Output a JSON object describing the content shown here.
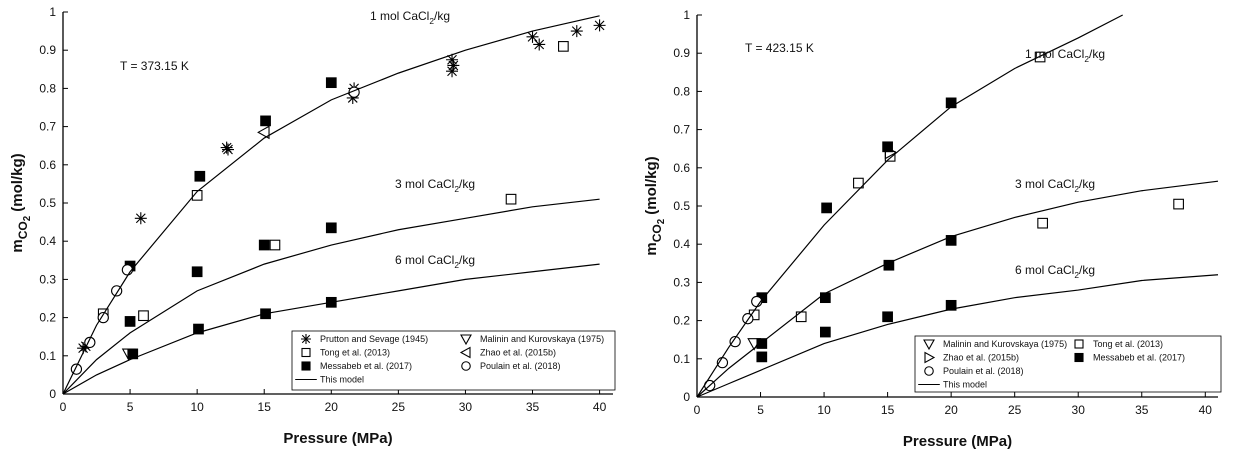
{
  "chart_data": [
    {
      "type": "scatter",
      "annotation": "T = 373.15 K",
      "xlabel": "Pressure (MPa)",
      "ylabel": [
        "m",
        "CO",
        "2",
        " (mol/kg)"
      ],
      "xlim": [
        0,
        41
      ],
      "ylim": [
        0,
        1
      ],
      "xticks": [
        0,
        5,
        10,
        15,
        20,
        25,
        30,
        35,
        40
      ],
      "yticks": [
        0,
        0.1,
        0.2,
        0.3,
        0.4,
        0.5,
        0.6,
        0.7,
        0.8,
        0.9,
        1
      ],
      "series": [
        {
          "name": "Prutton and Sevage (1945)",
          "marker": "asterisk",
          "color": "#000000",
          "x": [
            1.5,
            1.7,
            5.8,
            12.2,
            12.3,
            21.7,
            21.6,
            29,
            29,
            29.1,
            35,
            35.5,
            38.3,
            40
          ],
          "values": [
            0.12,
            0.125,
            0.46,
            0.645,
            0.64,
            0.8,
            0.775,
            0.875,
            0.845,
            0.86,
            0.935,
            0.915,
            0.95,
            0.965
          ]
        },
        {
          "name": "Malinin and Kurovskaya (1975)",
          "marker": "triangle-down",
          "color": "#000000",
          "x": [
            4.9
          ],
          "values": [
            0.105
          ]
        },
        {
          "name": "Tong et al. (2013)",
          "marker": "square-open",
          "color": "#000000",
          "x": [
            3,
            6,
            10,
            15.8,
            33.4,
            37.3
          ],
          "values": [
            0.21,
            0.205,
            0.52,
            0.39,
            0.51,
            0.91
          ]
        },
        {
          "name": "Zhao et al. (2015b)",
          "marker": "triangle-left",
          "color": "#000000",
          "x": [
            15
          ],
          "values": [
            0.685
          ]
        },
        {
          "name": "Messabeb et al. (2017)",
          "marker": "square-filled",
          "color": "#000000",
          "x": [
            5,
            5,
            5.2,
            10.2,
            10,
            10.1,
            15.1,
            15,
            15.1,
            20,
            20,
            20
          ],
          "values": [
            0.335,
            0.19,
            0.105,
            0.57,
            0.32,
            0.17,
            0.715,
            0.39,
            0.21,
            0.815,
            0.435,
            0.24
          ]
        },
        {
          "name": "Poulain et al. (2018)",
          "marker": "circle-open",
          "color": "#000000",
          "x": [
            1,
            2,
            3,
            4,
            4.8,
            21.7
          ],
          "values": [
            0.065,
            0.135,
            0.2,
            0.27,
            0.325,
            0.79
          ]
        },
        {
          "name": "This model",
          "marker": "line",
          "color": "#000000",
          "curves": [
            {
              "label": [
                "1 mol CaCl",
                "2",
                "/kg"
              ],
              "x": [
                0,
                2.5,
                5,
                10,
                15,
                20,
                25,
                30,
                35,
                40
              ],
              "values": [
                0,
                0.18,
                0.32,
                0.53,
                0.67,
                0.77,
                0.84,
                0.9,
                0.95,
                0.99
              ]
            },
            {
              "label": [
                "3 mol CaCl",
                "2",
                "/kg"
              ],
              "x": [
                0,
                2.5,
                5,
                10,
                15,
                20,
                25,
                30,
                35,
                40
              ],
              "values": [
                0,
                0.09,
                0.16,
                0.27,
                0.34,
                0.39,
                0.43,
                0.46,
                0.49,
                0.51
              ]
            },
            {
              "label": [
                "6 mol CaCl",
                "2",
                "/kg"
              ],
              "x": [
                0,
                2.5,
                5,
                10,
                15,
                20,
                25,
                30,
                35,
                40
              ],
              "values": [
                0,
                0.05,
                0.09,
                0.16,
                0.21,
                0.24,
                0.27,
                0.3,
                0.32,
                0.34
              ]
            }
          ]
        }
      ]
    },
    {
      "type": "scatter",
      "annotation": "T = 423.15 K",
      "xlabel": "Pressure (MPa)",
      "ylabel": [
        "m",
        "CO",
        "2",
        " (mol/kg)"
      ],
      "xlim": [
        0,
        41
      ],
      "ylim": [
        0,
        1
      ],
      "xticks": [
        0,
        5,
        10,
        15,
        20,
        25,
        30,
        35,
        40
      ],
      "yticks": [
        0,
        0.1,
        0.2,
        0.3,
        0.4,
        0.5,
        0.6,
        0.7,
        0.8,
        0.9,
        1
      ],
      "series": [
        {
          "name": "Malinin and Kurovskaya (1975)",
          "marker": "triangle-down",
          "color": "#000000",
          "x": [
            4.5
          ],
          "values": [
            0.14
          ]
        },
        {
          "name": "Tong et al. (2013)",
          "marker": "square-open",
          "color": "#000000",
          "x": [
            4.5,
            8.2,
            12.7,
            15.2,
            27,
            27.2,
            37.9
          ],
          "values": [
            0.215,
            0.21,
            0.56,
            0.63,
            0.89,
            0.455,
            0.505
          ]
        },
        {
          "name": "Zhao et al. (2015b)",
          "marker": "triangle-right",
          "color": "#000000",
          "x": [
            15.2
          ],
          "values": [
            0.64
          ]
        },
        {
          "name": "Messabeb et al. (2017)",
          "marker": "square-filled",
          "color": "#000000",
          "x": [
            5.1,
            5.1,
            5.1,
            10.2,
            10.1,
            10.1,
            15,
            15.1,
            15,
            20,
            20,
            20
          ],
          "values": [
            0.26,
            0.14,
            0.105,
            0.495,
            0.26,
            0.17,
            0.655,
            0.345,
            0.21,
            0.77,
            0.41,
            0.24
          ]
        },
        {
          "name": "Poulain et al. (2018)",
          "marker": "circle-open",
          "color": "#000000",
          "x": [
            1,
            2,
            3,
            4,
            4.7
          ],
          "values": [
            0.03,
            0.09,
            0.145,
            0.205,
            0.25
          ]
        },
        {
          "name": "This model",
          "marker": "line",
          "color": "#000000",
          "curves": [
            {
              "label": [
                "1 mol CaCl",
                "2",
                "/kg"
              ],
              "x": [
                0,
                2.5,
                5,
                10,
                15,
                20,
                25,
                30,
                33.5
              ],
              "values": [
                0,
                0.13,
                0.25,
                0.45,
                0.62,
                0.76,
                0.86,
                0.94,
                1
              ]
            },
            {
              "label": [
                "3 mol CaCl",
                "2",
                "/kg"
              ],
              "x": [
                0,
                2.5,
                5,
                10,
                15,
                20,
                25,
                30,
                35,
                41
              ],
              "values": [
                0,
                0.075,
                0.14,
                0.27,
                0.35,
                0.42,
                0.47,
                0.51,
                0.54,
                0.565
              ]
            },
            {
              "label": [
                "6 mol CaCl",
                "2",
                "/kg"
              ],
              "x": [
                0,
                2.5,
                5,
                10,
                15,
                20,
                25,
                30,
                35,
                41
              ],
              "values": [
                0,
                0.035,
                0.07,
                0.14,
                0.19,
                0.23,
                0.26,
                0.28,
                0.305,
                0.32
              ]
            }
          ]
        }
      ]
    }
  ]
}
